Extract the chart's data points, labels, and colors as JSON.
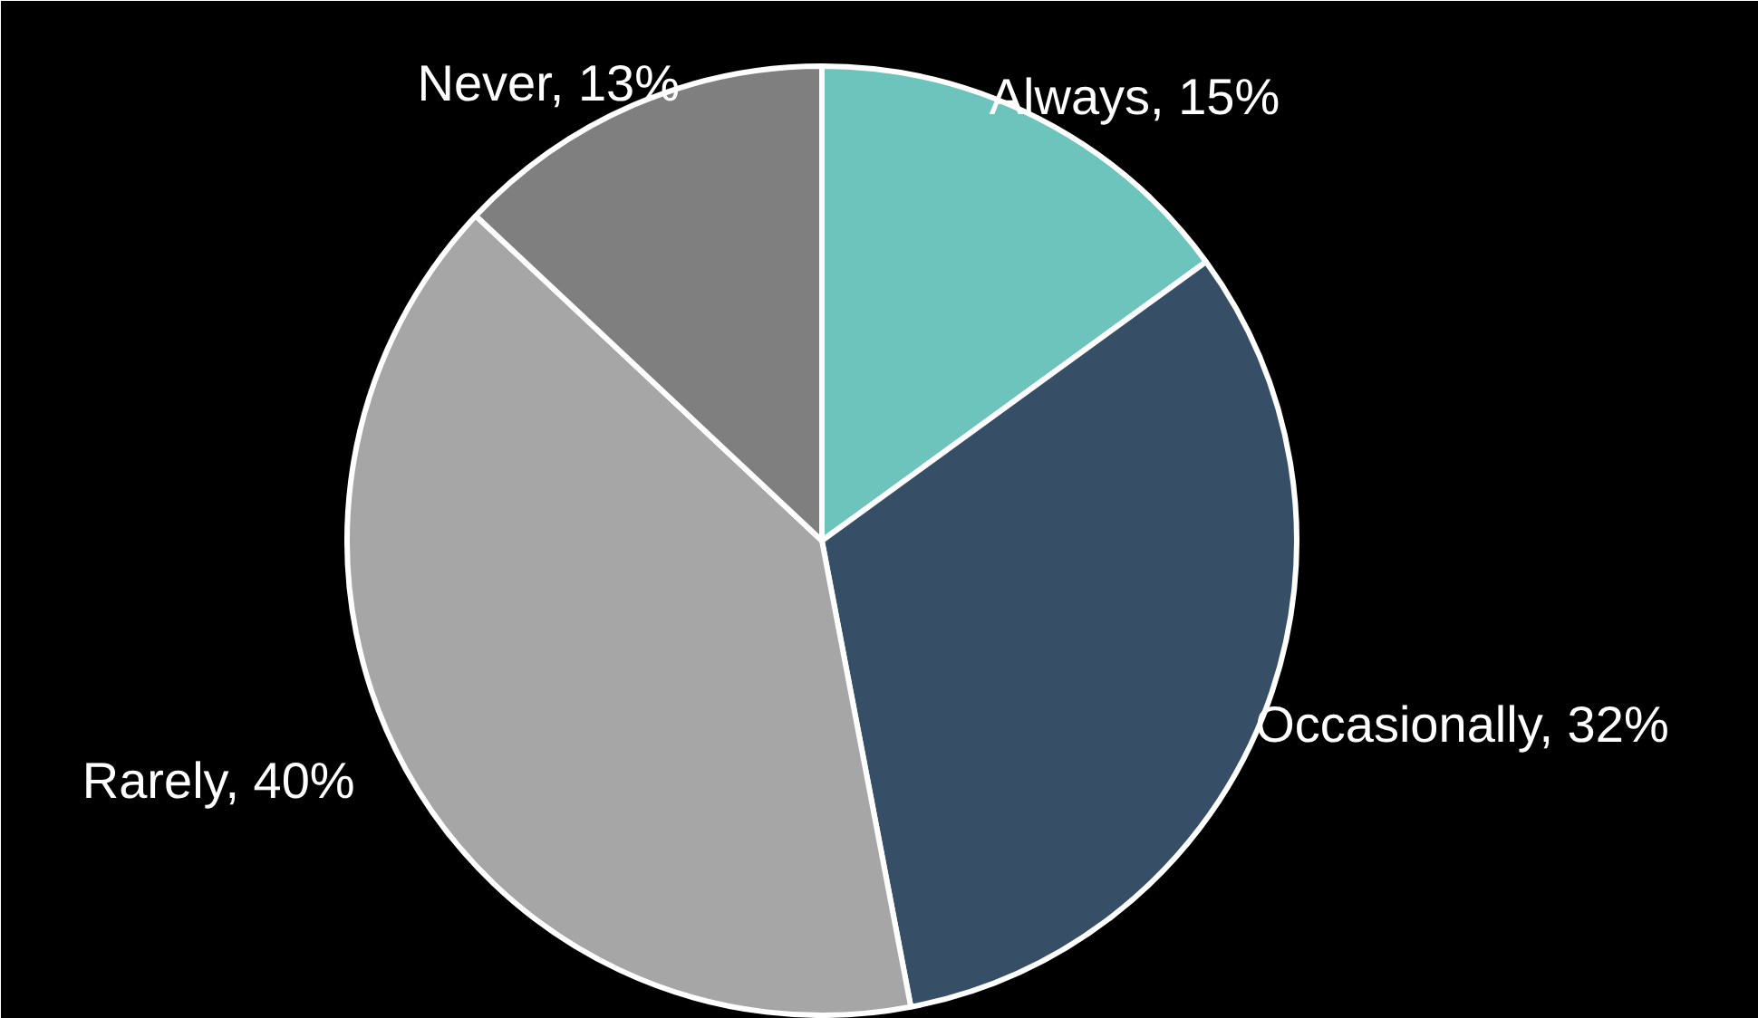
{
  "chart_data": {
    "type": "pie",
    "categories": [
      "Always",
      "Occasionally",
      "Rarely",
      "Never"
    ],
    "values": [
      15,
      32,
      40,
      13
    ],
    "colors": [
      "#6cc4bc",
      "#374f66",
      "#a6a6a6",
      "#7f7f7f"
    ],
    "value_labels": [
      "15%",
      "32%",
      "40%",
      "13%"
    ]
  }
}
